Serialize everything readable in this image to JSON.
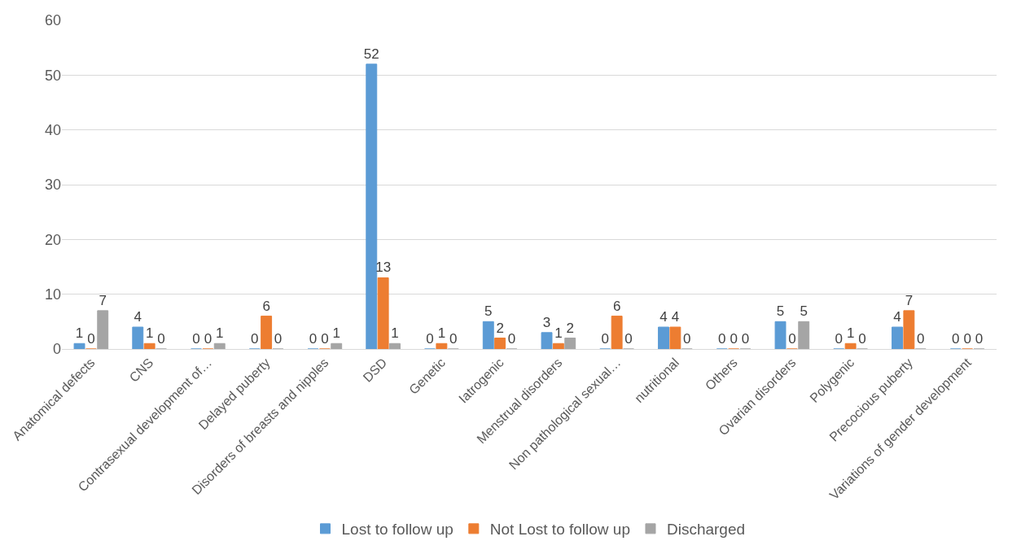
{
  "chart_data": {
    "type": "bar",
    "categories": [
      "Anatomical defects",
      "CNS",
      "Contrasexual development of…",
      "Delayed puberty",
      "Disorders of breasts and nipples",
      "DSD",
      "Genetic",
      "Iatrogenic",
      "Menstrual disorders",
      "Non pathological sexual…",
      "nutritional",
      "Others",
      "Ovarian disorders",
      "Polygenic",
      "Precocious puberty",
      "Variations of gender development"
    ],
    "series": [
      {
        "name": "Lost to follow up",
        "color": "#5b9bd5",
        "values": [
          1,
          4,
          0,
          0,
          0,
          52,
          0,
          5,
          3,
          0,
          4,
          0,
          5,
          0,
          4,
          0
        ]
      },
      {
        "name": "Not Lost to follow up",
        "color": "#ed7d31",
        "values": [
          0,
          1,
          0,
          6,
          0,
          13,
          1,
          2,
          1,
          6,
          4,
          0,
          0,
          1,
          7,
          0
        ]
      },
      {
        "name": "Discharged",
        "color": "#a5a5a5",
        "values": [
          7,
          0,
          1,
          0,
          1,
          1,
          0,
          0,
          2,
          0,
          0,
          0,
          5,
          0,
          0,
          0
        ]
      }
    ],
    "ylim": [
      0,
      60
    ],
    "yticks": [
      0,
      10,
      20,
      30,
      40,
      50,
      60
    ],
    "grid": "y",
    "legend": "bottom",
    "data_labels": true
  }
}
